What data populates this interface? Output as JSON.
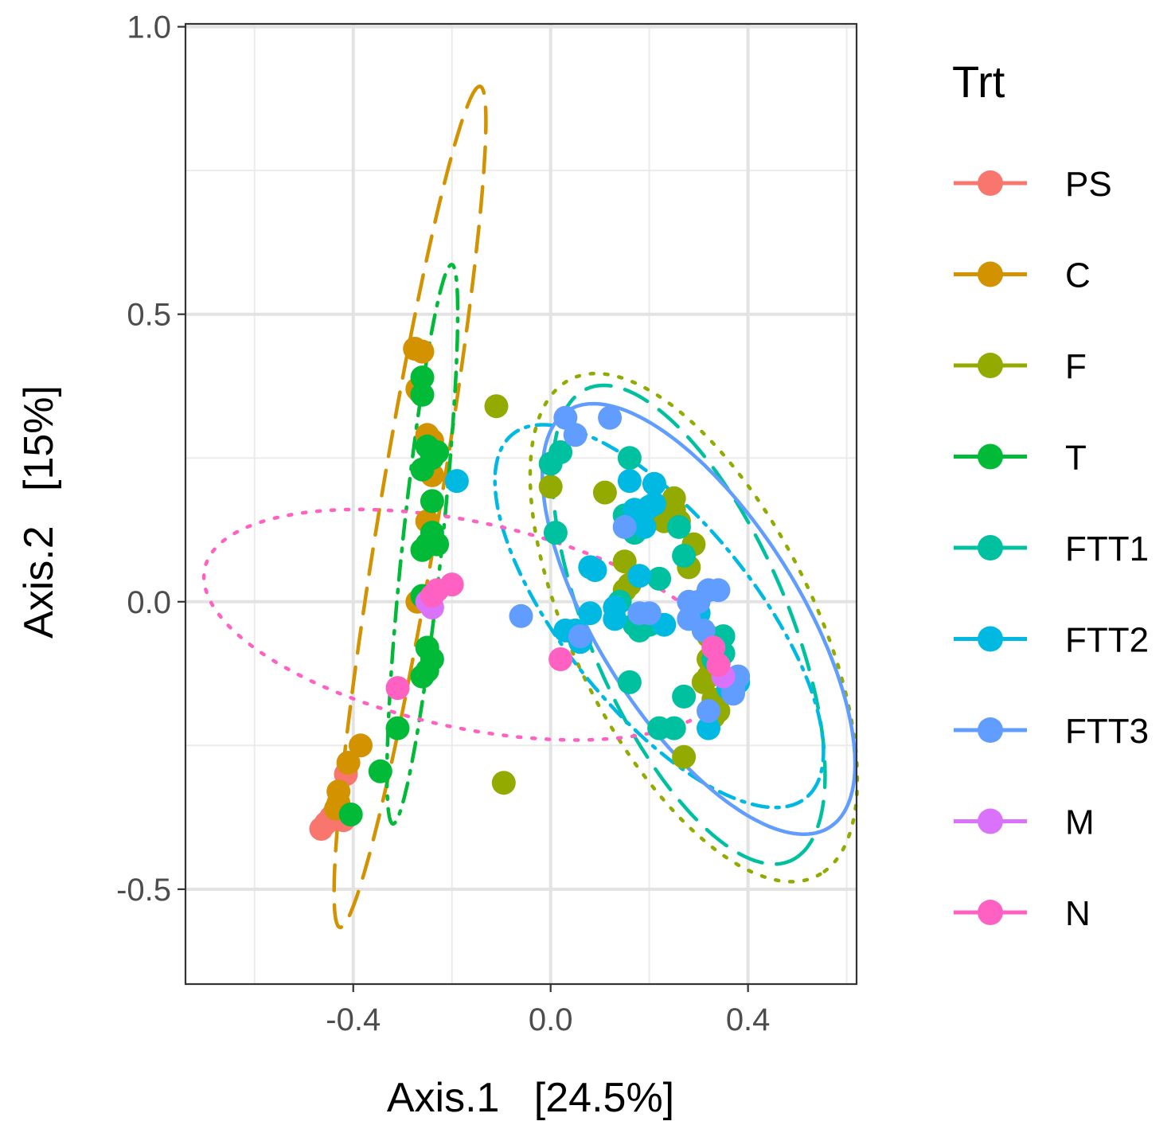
{
  "chart_data": {
    "type": "scatter",
    "title": "",
    "xlabel": "Axis.1   [24.5%]",
    "ylabel": "Axis.2   [15%]",
    "xlim": [
      -0.74,
      0.62
    ],
    "ylim": [
      -0.665,
      1.005
    ],
    "xticks": [
      -0.4,
      0.0,
      0.4
    ],
    "xtick_labels": [
      "-0.4",
      "0.0",
      "0.4"
    ],
    "yticks": [
      -0.5,
      0.0,
      0.5,
      1.0
    ],
    "ytick_labels": [
      "-0.5",
      "0.0",
      "0.5",
      "1.0"
    ],
    "grid": true,
    "legend": {
      "title": "Trt",
      "position": "right",
      "entries": [
        "PS",
        "C",
        "F",
        "T",
        "FTT1",
        "FTT2",
        "FTT3",
        "M",
        "N"
      ]
    },
    "series": [
      {
        "name": "PS",
        "color": "#F8766D",
        "dash": "solid",
        "ellipse": null,
        "points": [
          [
            -0.465,
            -0.395
          ],
          [
            -0.455,
            -0.385
          ],
          [
            -0.445,
            -0.375
          ],
          [
            -0.44,
            -0.37
          ],
          [
            -0.43,
            -0.375
          ],
          [
            -0.42,
            -0.38
          ],
          [
            -0.415,
            -0.375
          ],
          [
            -0.415,
            -0.3
          ]
        ]
      },
      {
        "name": "C",
        "color": "#D39200",
        "dash": "long",
        "ellipse": {
          "cx": -0.285,
          "cy": 0.165,
          "rx": 0.745,
          "ry": 0.06,
          "angle": 79
        },
        "points": [
          [
            -0.275,
            0.44
          ],
          [
            -0.26,
            0.435
          ],
          [
            -0.27,
            0.37
          ],
          [
            -0.265,
            0.365
          ],
          [
            -0.25,
            0.29
          ],
          [
            -0.24,
            0.28
          ],
          [
            -0.24,
            0.22
          ],
          [
            -0.25,
            0.14
          ],
          [
            -0.27,
            0.0
          ],
          [
            -0.43,
            -0.33
          ],
          [
            -0.41,
            -0.28
          ],
          [
            -0.385,
            -0.25
          ],
          [
            -0.43,
            -0.35
          ],
          [
            -0.435,
            -0.36
          ]
        ]
      },
      {
        "name": "F",
        "color": "#93AA00",
        "dash": "dotted",
        "ellipse": {
          "cx": 0.29,
          "cy": -0.045,
          "rx": 0.5,
          "ry": 0.235,
          "angle": -58
        },
        "points": [
          [
            -0.11,
            0.34
          ],
          [
            0.0,
            0.2
          ],
          [
            0.11,
            0.19
          ],
          [
            0.25,
            0.18
          ],
          [
            0.25,
            0.16
          ],
          [
            0.26,
            0.14
          ],
          [
            0.23,
            0.14
          ],
          [
            0.29,
            0.1
          ],
          [
            0.15,
            0.07
          ],
          [
            0.28,
            0.06
          ],
          [
            0.16,
            0.03
          ],
          [
            0.15,
            0.02
          ],
          [
            0.32,
            -0.06
          ],
          [
            0.32,
            -0.1
          ],
          [
            0.32,
            -0.13
          ],
          [
            0.31,
            -0.14
          ],
          [
            0.33,
            -0.17
          ],
          [
            0.34,
            -0.19
          ],
          [
            0.33,
            -0.2
          ],
          [
            0.27,
            -0.27
          ],
          [
            -0.095,
            -0.315
          ]
        ]
      },
      {
        "name": "T",
        "color": "#00BA38",
        "dash": "dotdash",
        "ellipse": {
          "cx": -0.26,
          "cy": 0.1,
          "rx": 0.49,
          "ry": 0.04,
          "angle": 83
        },
        "points": [
          [
            -0.26,
            0.39
          ],
          [
            -0.26,
            0.36
          ],
          [
            -0.25,
            0.27
          ],
          [
            -0.23,
            0.26
          ],
          [
            -0.24,
            0.25
          ],
          [
            -0.26,
            0.23
          ],
          [
            -0.24,
            0.175
          ],
          [
            -0.24,
            0.12
          ],
          [
            -0.25,
            0.1
          ],
          [
            -0.23,
            0.1
          ],
          [
            -0.26,
            0.09
          ],
          [
            -0.26,
            0.01
          ],
          [
            -0.25,
            -0.08
          ],
          [
            -0.24,
            -0.1
          ],
          [
            -0.25,
            -0.12
          ],
          [
            -0.26,
            -0.13
          ],
          [
            -0.31,
            -0.22
          ],
          [
            -0.345,
            -0.295
          ],
          [
            -0.405,
            -0.37
          ]
        ]
      },
      {
        "name": "FTT1",
        "color": "#00C19F",
        "dash": "long",
        "ellipse": {
          "cx": 0.28,
          "cy": -0.04,
          "rx": 0.46,
          "ry": 0.195,
          "angle": -62
        },
        "points": [
          [
            0.02,
            0.26
          ],
          [
            0.0,
            0.24
          ],
          [
            0.16,
            0.25
          ],
          [
            0.15,
            0.15
          ],
          [
            0.26,
            0.13
          ],
          [
            0.17,
            0.12
          ],
          [
            0.01,
            0.12
          ],
          [
            0.27,
            0.08
          ],
          [
            0.22,
            0.04
          ],
          [
            0.14,
            0.0
          ],
          [
            0.17,
            -0.04
          ],
          [
            0.18,
            -0.05
          ],
          [
            0.2,
            -0.04
          ],
          [
            0.35,
            -0.06
          ],
          [
            0.35,
            -0.09
          ],
          [
            0.16,
            -0.14
          ],
          [
            0.27,
            -0.165
          ],
          [
            0.22,
            -0.22
          ],
          [
            0.25,
            -0.22
          ],
          [
            0.33,
            -0.1
          ]
        ]
      },
      {
        "name": "FTT2",
        "color": "#00B9E3",
        "dash": "dashdot",
        "ellipse": {
          "cx": 0.22,
          "cy": -0.025,
          "rx": 0.435,
          "ry": 0.18,
          "angle": -45
        },
        "points": [
          [
            -0.19,
            0.21
          ],
          [
            0.16,
            0.21
          ],
          [
            0.21,
            0.205
          ],
          [
            0.21,
            0.17
          ],
          [
            0.17,
            0.16
          ],
          [
            0.2,
            0.165
          ],
          [
            0.19,
            0.13
          ],
          [
            0.08,
            0.06
          ],
          [
            0.09,
            0.055
          ],
          [
            0.18,
            0.045
          ],
          [
            0.08,
            -0.02
          ],
          [
            0.13,
            -0.03
          ],
          [
            0.13,
            -0.01
          ],
          [
            0.3,
            -0.02
          ],
          [
            0.23,
            -0.04
          ],
          [
            0.05,
            -0.05
          ],
          [
            0.03,
            -0.05
          ],
          [
            0.06,
            -0.07
          ],
          [
            0.36,
            -0.15
          ],
          [
            0.38,
            -0.14
          ],
          [
            0.32,
            -0.22
          ]
        ]
      },
      {
        "name": "FTT3",
        "color": "#619CFF",
        "dash": "solid",
        "ellipse": {
          "cx": 0.3,
          "cy": -0.03,
          "rx": 0.45,
          "ry": 0.195,
          "angle": -52
        },
        "points": [
          [
            0.03,
            0.32
          ],
          [
            0.12,
            0.32
          ],
          [
            0.05,
            0.29
          ],
          [
            0.15,
            0.13
          ],
          [
            0.18,
            -0.02
          ],
          [
            0.2,
            -0.02
          ],
          [
            0.28,
            0.0
          ],
          [
            0.3,
            0.0
          ],
          [
            0.32,
            0.02
          ],
          [
            0.34,
            0.02
          ],
          [
            0.28,
            -0.03
          ],
          [
            0.31,
            -0.05
          ],
          [
            0.06,
            -0.06
          ],
          [
            -0.06,
            -0.025
          ],
          [
            0.38,
            -0.13
          ],
          [
            0.37,
            -0.15
          ],
          [
            0.37,
            -0.16
          ],
          [
            0.32,
            -0.19
          ]
        ]
      },
      {
        "name": "M",
        "color": "#DB72FB",
        "dash": "solid",
        "ellipse": null,
        "points": [
          [
            -0.25,
            0.0
          ],
          [
            -0.24,
            -0.01
          ],
          [
            0.35,
            -0.13
          ]
        ]
      },
      {
        "name": "N",
        "color": "#FF61C3",
        "dash": "dotted",
        "ellipse": {
          "cx": -0.17,
          "cy": -0.04,
          "rx": 0.54,
          "ry": 0.18,
          "angle": -10
        },
        "points": [
          [
            -0.24,
            0.01
          ],
          [
            -0.23,
            0.02
          ],
          [
            -0.2,
            0.03
          ],
          [
            -0.31,
            -0.15
          ],
          [
            0.02,
            -0.1
          ],
          [
            0.34,
            -0.11
          ],
          [
            0.33,
            -0.08
          ]
        ]
      }
    ]
  }
}
